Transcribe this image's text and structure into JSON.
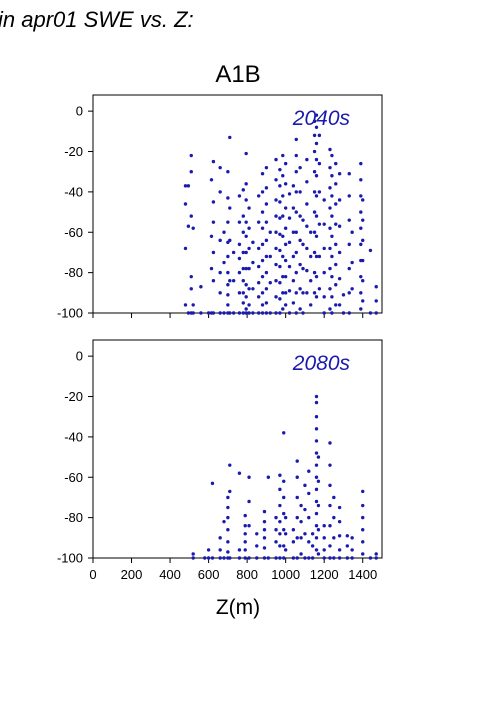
{
  "page": {
    "heading": "in apr01 SWE vs. Z:",
    "scenario": "A1B",
    "xlabel": "Z(m)"
  },
  "colors": {
    "points": "#1a1aad",
    "panel_label": "#1a1aad",
    "axes": "#000000"
  },
  "chart_data": [
    {
      "type": "scatter",
      "title": "2040s",
      "xlim": [
        0,
        1500
      ],
      "ylim": [
        -100,
        8
      ],
      "xticks": [
        0,
        200,
        400,
        600,
        800,
        1000,
        1200,
        1400
      ],
      "yticks": [
        0,
        -20,
        -40,
        -60,
        -80,
        -100
      ],
      "x_tick_labels_shown": false,
      "grid": false,
      "series": [
        {
          "columns": [
            {
              "x": 480,
              "y": [
                -37,
                -46,
                -68,
                -96
              ]
            },
            {
              "x": 495,
              "y": [
                -37,
                -57,
                -100
              ]
            },
            {
              "x": 510,
              "y": [
                -22,
                -30,
                -52,
                -82,
                -88,
                -100
              ]
            },
            {
              "x": 520,
              "y": [
                -58,
                -96,
                -100
              ]
            },
            {
              "x": 560,
              "y": [
                -87,
                -100
              ]
            },
            {
              "x": 600,
              "y": [
                -100
              ]
            },
            {
              "x": 615,
              "y": [
                -34,
                -62,
                -78,
                -100
              ]
            },
            {
              "x": 625,
              "y": [
                -25,
                -45,
                -55,
                -70,
                -84,
                -100
              ]
            },
            {
              "x": 660,
              "y": [
                -28,
                -40,
                -64,
                -80,
                -90,
                -100
              ]
            },
            {
              "x": 680,
              "y": [
                -60,
                -75,
                -100
              ]
            },
            {
              "x": 700,
              "y": [
                -30,
                -43,
                -55,
                -65,
                -72,
                -80,
                -86,
                -91,
                -96,
                -100
              ]
            },
            {
              "x": 710,
              "y": [
                -13,
                -48,
                -64,
                -84,
                -100
              ]
            },
            {
              "x": 730,
              "y": [
                -70,
                -84,
                -100
              ]
            },
            {
              "x": 760,
              "y": [
                -42,
                -55,
                -66,
                -73,
                -80,
                -90,
                -100
              ]
            },
            {
              "x": 780,
              "y": [
                -39,
                -52,
                -60,
                -70,
                -78,
                -84,
                -90,
                -95,
                -100
              ]
            },
            {
              "x": 795,
              "y": [
                -21,
                -36,
                -44,
                -55,
                -62,
                -70,
                -78,
                -86,
                -92,
                -98,
                -100
              ]
            },
            {
              "x": 810,
              "y": [
                -48,
                -58,
                -68,
                -78,
                -88,
                -96,
                -100
              ]
            },
            {
              "x": 830,
              "y": [
                -65,
                -75,
                -88,
                -100
              ]
            },
            {
              "x": 860,
              "y": [
                -42,
                -55,
                -68,
                -77,
                -85,
                -92,
                -100
              ]
            },
            {
              "x": 880,
              "y": [
                -31,
                -40,
                -50,
                -58,
                -66,
                -74,
                -82,
                -90,
                -96,
                -100
              ]
            },
            {
              "x": 900,
              "y": [
                -28,
                -38,
                -46,
                -55,
                -64,
                -72,
                -80,
                -88,
                -95,
                -100
              ]
            },
            {
              "x": 920,
              "y": [
                -60,
                -72,
                -85,
                -100
              ]
            },
            {
              "x": 950,
              "y": [
                -24,
                -34,
                -44,
                -52,
                -60,
                -68,
                -76,
                -84,
                -92,
                -100
              ]
            },
            {
              "x": 970,
              "y": [
                -29,
                -37,
                -45,
                -53,
                -61,
                -69,
                -77,
                -85,
                -93,
                -100
              ]
            },
            {
              "x": 985,
              "y": [
                -22,
                -32,
                -42,
                -52,
                -62,
                -72,
                -82,
                -90,
                -98
              ]
            },
            {
              "x": 1000,
              "y": [
                -26,
                -36,
                -48,
                -58,
                -66,
                -74,
                -82,
                -90,
                -96
              ]
            },
            {
              "x": 1020,
              "y": [
                -41,
                -53,
                -65,
                -77,
                -89,
                -100
              ]
            },
            {
              "x": 1040,
              "y": [
                -37,
                -48,
                -60,
                -72,
                -84,
                -95
              ]
            },
            {
              "x": 1055,
              "y": [
                -14,
                -22,
                -30,
                -40,
                -50,
                -60,
                -70,
                -80,
                -90,
                -100
              ]
            },
            {
              "x": 1075,
              "y": [
                -28,
                -40,
                -52,
                -64,
                -76,
                -88,
                -98
              ]
            },
            {
              "x": 1090,
              "y": [
                -54,
                -66,
                -78,
                -90,
                -100
              ]
            },
            {
              "x": 1110,
              "y": [
                -24,
                -35,
                -46,
                -57,
                -68,
                -79,
                -90
              ]
            },
            {
              "x": 1130,
              "y": [
                -60,
                -72,
                -84,
                -96
              ]
            },
            {
              "x": 1150,
              "y": [
                -5,
                -12,
                -20,
                -30,
                -40,
                -50,
                -60,
                -70,
                -80,
                -90
              ]
            },
            {
              "x": 1160,
              "y": [
                -2,
                -8,
                -16,
                -24,
                -32,
                -42,
                -52,
                -62,
                -72,
                -82,
                -92
              ]
            },
            {
              "x": 1175,
              "y": [
                -12,
                -26,
                -40,
                -56,
                -72,
                -88
              ]
            },
            {
              "x": 1200,
              "y": [
                -44,
                -56,
                -68,
                -80,
                -92,
                -100
              ]
            },
            {
              "x": 1230,
              "y": [
                -19,
                -28,
                -38,
                -48,
                -58,
                -68,
                -78,
                -88,
                -98
              ]
            },
            {
              "x": 1240,
              "y": [
                -22,
                -32,
                -42,
                -52,
                -62,
                -72,
                -82,
                -92,
                -100
              ]
            },
            {
              "x": 1260,
              "y": [
                -26,
                -36,
                -46,
                -56,
                -66,
                -76,
                -86,
                -96
              ]
            },
            {
              "x": 1280,
              "y": [
                -31,
                -44,
                -57,
                -70,
                -83,
                -96
              ]
            },
            {
              "x": 1300,
              "y": [
                -91,
                -100
              ]
            },
            {
              "x": 1330,
              "y": [
                -31,
                -42,
                -54,
                -66,
                -78,
                -90,
                -100
              ]
            },
            {
              "x": 1345,
              "y": [
                -60,
                -75,
                -88
              ]
            },
            {
              "x": 1390,
              "y": [
                -26,
                -34,
                -42,
                -50,
                -58,
                -66,
                -74,
                -82,
                -90,
                -98
              ]
            },
            {
              "x": 1400,
              "y": [
                -44,
                -54,
                -64,
                -74,
                -84,
                -94
              ]
            },
            {
              "x": 1440,
              "y": [
                -69,
                -100
              ]
            },
            {
              "x": 1470,
              "y": [
                -87,
                -94,
                -100
              ]
            }
          ]
        }
      ]
    },
    {
      "type": "scatter",
      "title": "2080s",
      "xlim": [
        0,
        1500
      ],
      "ylim": [
        -100,
        8
      ],
      "xticks": [
        0,
        200,
        400,
        600,
        800,
        1000,
        1200,
        1400
      ],
      "yticks": [
        0,
        -20,
        -40,
        -60,
        -80,
        -100
      ],
      "x_tick_labels": [
        "0",
        "200",
        "400",
        "600",
        "800",
        "1000",
        "1200",
        "1400"
      ],
      "grid": false,
      "series": [
        {
          "columns": [
            {
              "x": 520,
              "y": [
                -98,
                -100
              ]
            },
            {
              "x": 580,
              "y": [
                -100
              ]
            },
            {
              "x": 600,
              "y": [
                -96,
                -100
              ]
            },
            {
              "x": 620,
              "y": [
                -63,
                -100
              ]
            },
            {
              "x": 660,
              "y": [
                -90,
                -96,
                -100
              ]
            },
            {
              "x": 680,
              "y": [
                -82,
                -100
              ]
            },
            {
              "x": 700,
              "y": [
                -70,
                -75,
                -80,
                -86,
                -92,
                -97,
                -100
              ]
            },
            {
              "x": 710,
              "y": [
                -54,
                -67,
                -100
              ]
            },
            {
              "x": 760,
              "y": [
                -58,
                -96,
                -100
              ]
            },
            {
              "x": 790,
              "y": [
                -79,
                -84,
                -88,
                -92,
                -96,
                -100
              ]
            },
            {
              "x": 810,
              "y": [
                -60,
                -72,
                -84,
                -100
              ]
            },
            {
              "x": 850,
              "y": [
                -88,
                -94,
                -100
              ]
            },
            {
              "x": 890,
              "y": [
                -77,
                -82,
                -86,
                -90,
                -95,
                -100
              ]
            },
            {
              "x": 910,
              "y": [
                -60,
                -100
              ]
            },
            {
              "x": 950,
              "y": [
                -80,
                -86,
                -92,
                -100
              ]
            },
            {
              "x": 970,
              "y": [
                -59,
                -66,
                -74,
                -82,
                -88,
                -94,
                -100
              ]
            },
            {
              "x": 990,
              "y": [
                -38,
                -62,
                -70,
                -78,
                -86,
                -94,
                -100
              ]
            },
            {
              "x": 1000,
              "y": [
                -80,
                -88,
                -96
              ]
            },
            {
              "x": 1040,
              "y": [
                -86,
                -92,
                -100
              ]
            },
            {
              "x": 1060,
              "y": [
                -52,
                -60,
                -70,
                -80,
                -90,
                -100
              ]
            },
            {
              "x": 1080,
              "y": [
                -74,
                -82,
                -90,
                -98
              ]
            },
            {
              "x": 1100,
              "y": [
                -64,
                -76,
                -88,
                -100
              ]
            },
            {
              "x": 1120,
              "y": [
                -57,
                -68,
                -80,
                -92,
                -100
              ]
            },
            {
              "x": 1140,
              "y": [
                -88,
                -94,
                -100
              ]
            },
            {
              "x": 1160,
              "y": [
                -20,
                -23,
                -30,
                -36,
                -42,
                -48,
                -54,
                -60,
                -66,
                -72,
                -78,
                -84,
                -90,
                -96
              ]
            },
            {
              "x": 1170,
              "y": [
                -50,
                -62,
                -74,
                -86,
                -98
              ]
            },
            {
              "x": 1200,
              "y": [
                -84,
                -90,
                -96,
                -100
              ]
            },
            {
              "x": 1230,
              "y": [
                -43,
                -54,
                -64,
                -74,
                -84,
                -94,
                -100
              ]
            },
            {
              "x": 1250,
              "y": [
                -70,
                -80,
                -90,
                -100
              ]
            },
            {
              "x": 1280,
              "y": [
                -75,
                -82,
                -89,
                -96,
                -100
              ]
            },
            {
              "x": 1320,
              "y": [
                -89,
                -94,
                -100
              ]
            },
            {
              "x": 1345,
              "y": [
                -90,
                -96,
                -100
              ]
            },
            {
              "x": 1400,
              "y": [
                -67,
                -74,
                -80,
                -86,
                -92,
                -98
              ]
            },
            {
              "x": 1440,
              "y": [
                -100
              ]
            },
            {
              "x": 1470,
              "y": [
                -98,
                -100
              ]
            }
          ]
        }
      ]
    }
  ]
}
